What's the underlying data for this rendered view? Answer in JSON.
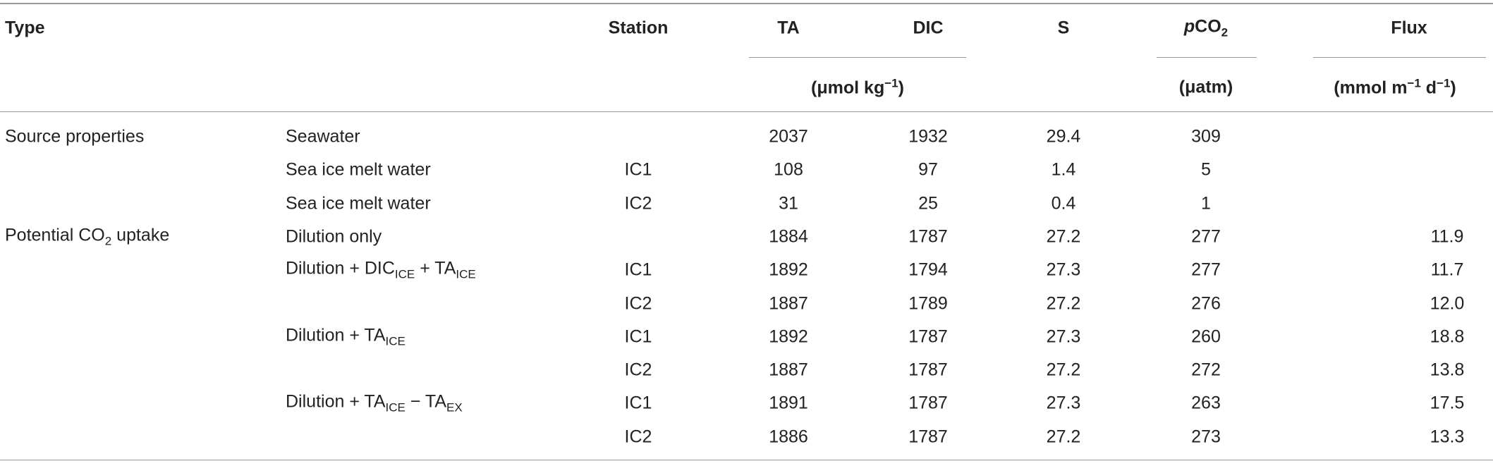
{
  "table": {
    "header": [
      "Type",
      "Station",
      "TA",
      "DIC",
      "S",
      [
        {
          "i": "p"
        },
        "CO",
        {
          "sub": "2"
        }
      ],
      "Flux"
    ],
    "units": [
      [
        "(μmol kg",
        {
          "sup": "−1"
        },
        ")"
      ],
      [
        "(μatm)"
      ],
      [
        "(mmol m",
        {
          "sup": "−1"
        },
        " d",
        {
          "sup": "−1"
        },
        ")"
      ]
    ],
    "rows": [
      [
        "Source properties",
        "Seawater",
        null,
        "2037",
        "1932",
        "29.4",
        "309",
        null
      ],
      [
        null,
        "Sea ice melt water",
        "IC1",
        "108",
        "97",
        "1.4",
        "5",
        null
      ],
      [
        null,
        "Sea ice melt water",
        "IC2",
        "31",
        "25",
        "0.4",
        "1",
        null
      ],
      [
        [
          "Potential CO",
          {
            "sub": "2"
          },
          " uptake"
        ],
        "Dilution only",
        null,
        "1884",
        "1787",
        "27.2",
        "277",
        "11.9"
      ],
      [
        null,
        [
          "Dilution + DIC",
          {
            "sub": "ICE"
          },
          " + TA",
          {
            "sub": "ICE"
          }
        ],
        "IC1",
        "1892",
        "1794",
        "27.3",
        "277",
        "11.7"
      ],
      [
        null,
        null,
        "IC2",
        "1887",
        "1789",
        "27.2",
        "276",
        "12.0"
      ],
      [
        null,
        [
          "Dilution + TA",
          {
            "sub": "ICE"
          }
        ],
        "IC1",
        "1892",
        "1787",
        "27.3",
        "260",
        "18.8"
      ],
      [
        null,
        null,
        "IC2",
        "1887",
        "1787",
        "27.2",
        "272",
        "13.8"
      ],
      [
        null,
        [
          "Dilution + TA",
          {
            "sub": "ICE"
          },
          " − TA",
          {
            "sub": "EX"
          }
        ],
        "IC1",
        "1891",
        "1787",
        "27.3",
        "263",
        "17.5"
      ],
      [
        null,
        null,
        "IC2",
        "1886",
        "1787",
        "27.2",
        "273",
        "13.3"
      ]
    ]
  }
}
